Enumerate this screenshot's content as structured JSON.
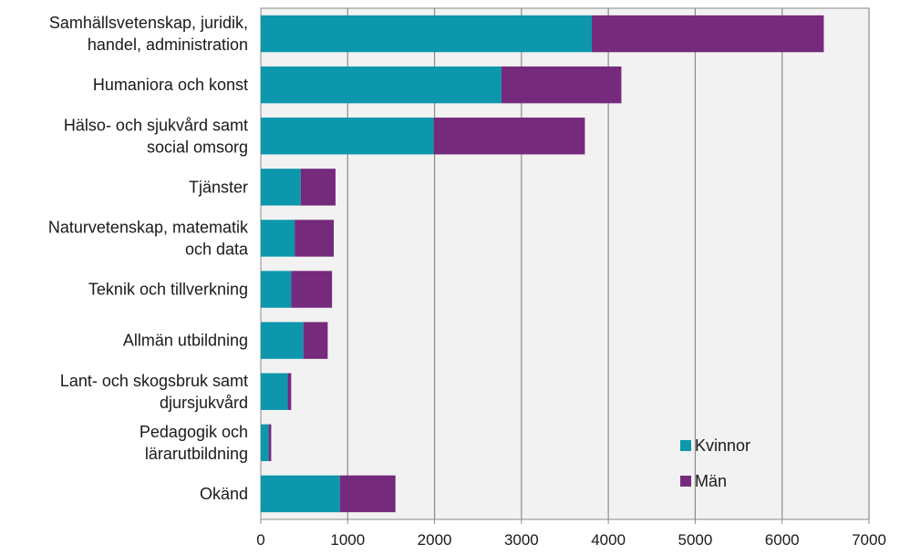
{
  "chart_data": {
    "type": "bar",
    "orientation": "horizontal",
    "stacked": true,
    "categories": [
      "Samhällsvetenskap, juridik,\nhandel, administration",
      "Humaniora och konst",
      "Hälso- och sjukvård samt\nsocial omsorg",
      "Tjänster",
      "Naturvetenskap, matematik\noch data",
      "Teknik och tillverkning",
      "Allmän utbildning",
      "Lant- och skogsbruk samt\ndjursjukvård",
      "Pedagogik och\nlärarutbildning",
      "Okänd"
    ],
    "series": [
      {
        "name": "Kvinnor",
        "color": "#0d97ad",
        "values": [
          3810,
          2770,
          1990,
          460,
          390,
          350,
          490,
          310,
          90,
          910
        ]
      },
      {
        "name": "Män",
        "color": "#752a7c",
        "values": [
          2670,
          1380,
          1740,
          400,
          450,
          470,
          280,
          40,
          30,
          640
        ]
      }
    ],
    "xlim": [
      0,
      7000
    ],
    "xticks": [
      0,
      1000,
      2000,
      3000,
      4000,
      5000,
      6000,
      7000
    ],
    "grid": true,
    "legend_position": "bottom-right",
    "title": "",
    "xlabel": "",
    "ylabel": ""
  }
}
